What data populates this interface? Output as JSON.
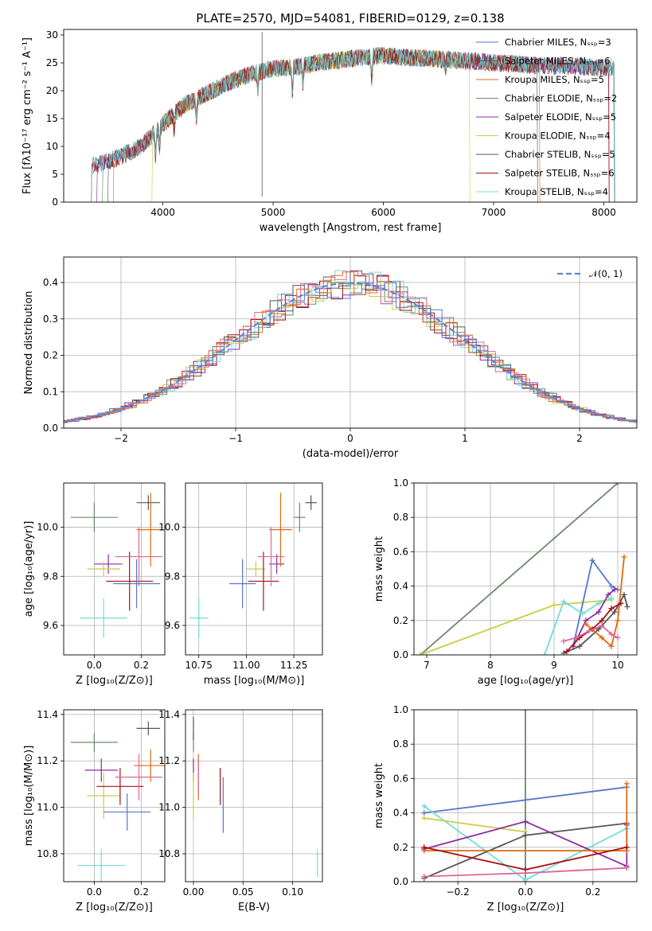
{
  "figure_title": "PLATE=2570, MJD=54081, FIBERID=0129, z=0.138",
  "colors": [
    "#6a8a6a",
    "#8e2ca0",
    "#cccc44",
    "#555555",
    "#aa1111",
    "#70dcdc",
    "#5577cc",
    "#e06a10",
    "#dd6699"
  ],
  "chart_data": [
    {
      "id": "spectrum",
      "type": "line",
      "title": "PLATE=2570, MJD=54081, FIBERID=0129, z=0.138",
      "xlabel": "wavelength [Angstrom, rest frame]",
      "ylabel": "Flux [fλ10⁻¹⁷ erg cm⁻² s⁻¹ A⁻¹]",
      "xlim": [
        3100,
        8300
      ],
      "ylim": [
        0,
        31
      ],
      "xticks": [
        "4000",
        "5000",
        "6000",
        "7000",
        "8000"
      ],
      "yticks": [
        "0",
        "5",
        "10",
        "15",
        "20",
        "25",
        "30"
      ],
      "grid": false,
      "legend": "upper-right",
      "continuum": {
        "x": [
          3350,
          3450,
          3600,
          3800,
          4000,
          4200,
          4400,
          4600,
          4800,
          5000,
          5200,
          5400,
          5600,
          5800,
          6000,
          6200,
          6400,
          6600,
          6800,
          7000,
          7200,
          7400,
          7600,
          7800,
          8000,
          8100
        ],
        "y": [
          6.5,
          7.0,
          8.0,
          10.0,
          14.0,
          17.5,
          19.5,
          21.5,
          23.0,
          24.0,
          24.2,
          25.0,
          25.5,
          26.0,
          26.3,
          26.0,
          25.8,
          25.5,
          25.3,
          25.0,
          24.8,
          24.5,
          24.5,
          24.3,
          24.2,
          24.2
        ]
      },
      "series": [
        {
          "label": "Chabrier MILES, N_SSP=3",
          "color": "#5577cc"
        },
        {
          "label": "Salpeter MILES, N_SSP=6",
          "color": "#555555"
        },
        {
          "label": "Kroupa MILES, N_SSP=5",
          "color": "#e06a10"
        },
        {
          "label": "Chabrier ELODIE, N_SSP=2",
          "color": "#6a8a6a"
        },
        {
          "label": "Salpeter ELODIE, N_SSP=5",
          "color": "#8e2ca0"
        },
        {
          "label": "Kroupa ELODIE, N_SSP=4",
          "color": "#cccc44"
        },
        {
          "label": "Chabrier STELIB, N_SSP=5",
          "color": "#555555"
        },
        {
          "label": "Salpeter STELIB, N_SSP=6",
          "color": "#aa1111"
        },
        {
          "label": "Kroupa STELIB, N_SSP=4",
          "color": "#70dcdc"
        }
      ]
    },
    {
      "id": "residuals",
      "type": "line",
      "xlabel": "(data-model)/error",
      "ylabel": "Normed distribution",
      "xlim": [
        -2.5,
        2.5
      ],
      "ylim": [
        0,
        0.47
      ],
      "xticks": [
        "−2",
        "−1",
        "0",
        "1",
        "2"
      ],
      "yticks": [
        "0.0",
        "0.1",
        "0.2",
        "0.3",
        "0.4"
      ],
      "grid": true,
      "legend": "upper-right",
      "legend_label": "𝒩(0, 1)",
      "gaussian": {
        "mean": 0,
        "sigma": 1,
        "color": "#5b86d8"
      }
    },
    {
      "id": "age-vs-Z",
      "type": "scatter",
      "xlabel": "Z [log₁₀(Z/Z⊙)]",
      "ylabel": "age  [log₁₀(age/yr)]",
      "xlim": [
        -0.13,
        0.3
      ],
      "ylim": [
        9.48,
        10.18
      ],
      "xticks": [
        "0.0",
        "0.2"
      ],
      "yticks": [
        "9.6",
        "9.8",
        "10.0"
      ],
      "grid": true,
      "points": [
        {
          "x": 0.0,
          "y": 10.04,
          "xerr": 0.1,
          "yerr": 0.06,
          "color": "#6a8a6a"
        },
        {
          "x": 0.23,
          "y": 10.1,
          "xerr": 0.05,
          "yerr": 0.03,
          "color": "#555555"
        },
        {
          "x": 0.06,
          "y": 9.85,
          "xerr": 0.06,
          "yerr": 0.04,
          "color": "#8e2ca0"
        },
        {
          "x": 0.04,
          "y": 9.83,
          "xerr": 0.07,
          "yerr": 0.03,
          "color": "#cccc44"
        },
        {
          "x": 0.15,
          "y": 9.78,
          "xerr": 0.1,
          "yerr": 0.12,
          "color": "#aa1111"
        },
        {
          "x": 0.24,
          "y": 9.99,
          "xerr": 0.06,
          "yerr": 0.15,
          "color": "#e06a10"
        },
        {
          "x": 0.19,
          "y": 9.88,
          "xerr": 0.1,
          "yerr": 0.12,
          "color": "#dd6699"
        },
        {
          "x": 0.18,
          "y": 9.77,
          "xerr": 0.1,
          "yerr": 0.1,
          "color": "#5577cc"
        },
        {
          "x": 0.04,
          "y": 9.63,
          "xerr": 0.1,
          "yerr": 0.08,
          "color": "#70dcdc"
        }
      ]
    },
    {
      "id": "age-vs-mass",
      "type": "scatter",
      "xlabel": "mass [log₁₀(M/M⊙)]",
      "xlim": [
        10.68,
        11.4
      ],
      "ylim": [
        9.48,
        10.18
      ],
      "xticks": [
        "10.75",
        "11.00",
        "11.25"
      ],
      "yticks": [
        "9.6",
        "9.8",
        "10.0"
      ],
      "grid": true,
      "points": [
        {
          "x": 11.28,
          "y": 10.04,
          "xerr": 0.03,
          "yerr": 0.06,
          "color": "#6a8a6a"
        },
        {
          "x": 11.34,
          "y": 10.1,
          "xerr": 0.03,
          "yerr": 0.03,
          "color": "#555555"
        },
        {
          "x": 11.16,
          "y": 9.85,
          "xerr": 0.04,
          "yerr": 0.04,
          "color": "#8e2ca0"
        },
        {
          "x": 11.05,
          "y": 9.83,
          "xerr": 0.05,
          "yerr": 0.03,
          "color": "#cccc44"
        },
        {
          "x": 11.09,
          "y": 9.78,
          "xerr": 0.08,
          "yerr": 0.12,
          "color": "#aa1111"
        },
        {
          "x": 11.18,
          "y": 9.99,
          "xerr": 0.06,
          "yerr": 0.15,
          "color": "#e06a10"
        },
        {
          "x": 11.13,
          "y": 9.88,
          "xerr": 0.07,
          "yerr": 0.12,
          "color": "#dd6699"
        },
        {
          "x": 10.98,
          "y": 9.77,
          "xerr": 0.07,
          "yerr": 0.1,
          "color": "#5577cc"
        },
        {
          "x": 10.75,
          "y": 9.63,
          "xerr": 0.05,
          "yerr": 0.08,
          "color": "#70dcdc"
        }
      ]
    },
    {
      "id": "weight-vs-age",
      "type": "line",
      "xlabel": "age  [log₁₀(age/yr)]",
      "ylabel": "mass weight",
      "xlim": [
        6.8,
        10.3
      ],
      "ylim": [
        0,
        1
      ],
      "xticks": [
        "7",
        "8",
        "9",
        "10"
      ],
      "yticks": [
        "0.0",
        "0.2",
        "0.4",
        "0.6",
        "0.8",
        "1.0"
      ],
      "grid": true,
      "series": [
        {
          "color": "#6a8a6a",
          "x": [
            6.9,
            10.0
          ],
          "y": [
            0.0,
            1.0
          ]
        },
        {
          "color": "#cccc44",
          "x": [
            6.9,
            9.0,
            9.9
          ],
          "y": [
            0.0,
            0.29,
            0.32
          ]
        },
        {
          "color": "#5577cc",
          "x": [
            9.3,
            9.6,
            9.9,
            10.0
          ],
          "y": [
            0.05,
            0.55,
            0.4,
            0.38
          ]
        },
        {
          "color": "#70dcdc",
          "x": [
            8.85,
            9.15,
            9.45,
            9.7,
            9.9
          ],
          "y": [
            0.0,
            0.31,
            0.24,
            0.3,
            0.33
          ]
        },
        {
          "color": "#8e2ca0",
          "x": [
            9.3,
            9.5,
            9.7,
            9.85,
            9.95
          ],
          "y": [
            0.05,
            0.2,
            0.25,
            0.35,
            0.38
          ]
        },
        {
          "color": "#555555",
          "x": [
            9.15,
            9.4,
            9.7,
            9.95,
            10.1,
            10.15
          ],
          "y": [
            0.01,
            0.05,
            0.15,
            0.25,
            0.35,
            0.28
          ]
        },
        {
          "color": "#e06a10",
          "x": [
            9.5,
            9.75,
            9.9,
            10.0,
            10.1
          ],
          "y": [
            0.18,
            0.1,
            0.05,
            0.2,
            0.57
          ]
        },
        {
          "color": "#aa1111",
          "x": [
            9.2,
            9.4,
            9.6,
            9.75,
            9.9,
            10.05
          ],
          "y": [
            0.02,
            0.1,
            0.15,
            0.2,
            0.27,
            0.3
          ]
        },
        {
          "color": "#dd6699",
          "x": [
            9.15,
            9.35,
            9.55,
            9.75,
            9.9,
            10.0
          ],
          "y": [
            0.08,
            0.1,
            0.14,
            0.17,
            0.12,
            0.1
          ]
        }
      ]
    },
    {
      "id": "mass-vs-Z",
      "type": "scatter",
      "xlabel": "Z [log₁₀(Z/Z⊙)]",
      "ylabel": "mass [log₁₀(M/M⊙)]",
      "xlim": [
        -0.13,
        0.3
      ],
      "ylim": [
        10.68,
        11.42
      ],
      "xticks": [
        "0.0",
        "0.2"
      ],
      "yticks": [
        "10.8",
        "11.0",
        "11.2",
        "11.4"
      ],
      "grid": true,
      "points": [
        {
          "x": 0.0,
          "y": 11.28,
          "xerr": 0.1,
          "yerr": 0.04,
          "color": "#6a8a6a"
        },
        {
          "x": 0.23,
          "y": 11.34,
          "xerr": 0.05,
          "yerr": 0.03,
          "color": "#555555"
        },
        {
          "x": 0.03,
          "y": 11.16,
          "xerr": 0.07,
          "yerr": 0.05,
          "color": "#8e2ca0"
        },
        {
          "x": 0.04,
          "y": 11.05,
          "xerr": 0.07,
          "yerr": 0.1,
          "color": "#cccc44"
        },
        {
          "x": 0.11,
          "y": 11.09,
          "xerr": 0.1,
          "yerr": 0.08,
          "color": "#aa1111"
        },
        {
          "x": 0.24,
          "y": 11.18,
          "xerr": 0.07,
          "yerr": 0.07,
          "color": "#e06a10"
        },
        {
          "x": 0.19,
          "y": 11.13,
          "xerr": 0.1,
          "yerr": 0.1,
          "color": "#dd6699"
        },
        {
          "x": 0.14,
          "y": 10.98,
          "xerr": 0.1,
          "yerr": 0.08,
          "color": "#5577cc"
        },
        {
          "x": 0.03,
          "y": 10.75,
          "xerr": 0.1,
          "yerr": 0.07,
          "color": "#70dcdc"
        }
      ]
    },
    {
      "id": "mass-vs-ebv",
      "type": "scatter",
      "xlabel": "E(B-V)",
      "xlim": [
        -0.008,
        0.13
      ],
      "ylim": [
        10.68,
        11.42
      ],
      "xticks": [
        "0.00",
        "0.05",
        "0.10"
      ],
      "yticks": [
        "10.8",
        "11.0",
        "11.2",
        "11.4"
      ],
      "grid": true,
      "points": [
        {
          "x": 0.0,
          "y": 11.28,
          "yerr": 0.04,
          "color": "#6a8a6a"
        },
        {
          "x": 0.0,
          "y": 11.34,
          "yerr": 0.05,
          "color": "#555555"
        },
        {
          "x": 0.0,
          "y": 11.16,
          "yerr": 0.05,
          "color": "#8e2ca0"
        },
        {
          "x": 0.0,
          "y": 11.05,
          "yerr": 0.1,
          "color": "#cccc44"
        },
        {
          "x": 0.027,
          "y": 11.09,
          "yerr": 0.08,
          "color": "#aa1111"
        },
        {
          "x": 0.005,
          "y": 11.13,
          "yerr": 0.1,
          "color": "#e06a10"
        },
        {
          "x": 0.005,
          "y": 11.13,
          "yerr": 0.08,
          "color": "#dd6699"
        },
        {
          "x": 0.03,
          "y": 11.01,
          "yerr": 0.12,
          "color": "#5577cc"
        },
        {
          "x": 0.125,
          "y": 10.76,
          "yerr": 0.06,
          "color": "#70dcdc"
        }
      ]
    },
    {
      "id": "weight-vs-Z",
      "type": "line",
      "xlabel": "Z [log₁₀(Z/Z⊙)]",
      "ylabel": "mass weight",
      "xlim": [
        -0.33,
        0.33
      ],
      "ylim": [
        0,
        1
      ],
      "xticks": [
        "−0.2",
        "0.0",
        "0.2"
      ],
      "yticks": [
        "0.0",
        "0.2",
        "0.4",
        "0.6",
        "0.8",
        "1.0"
      ],
      "grid": true,
      "series": [
        {
          "color": "#6a8a6a",
          "x": [
            0.0,
            0.0
          ],
          "y": [
            0.0,
            1.0
          ]
        },
        {
          "color": "#5577cc",
          "x": [
            -0.3,
            0.3
          ],
          "y": [
            0.4,
            0.55
          ]
        },
        {
          "color": "#70dcdc",
          "x": [
            -0.3,
            0.0,
            0.3
          ],
          "y": [
            0.44,
            0.01,
            0.31
          ]
        },
        {
          "color": "#cccc44",
          "x": [
            -0.3,
            0.0
          ],
          "y": [
            0.37,
            0.29
          ]
        },
        {
          "color": "#8e2ca0",
          "x": [
            -0.3,
            0.0,
            0.3,
            0.3
          ],
          "y": [
            0.19,
            0.35,
            0.09,
            0.33
          ]
        },
        {
          "color": "#555555",
          "x": [
            -0.3,
            0.0,
            0.3
          ],
          "y": [
            0.02,
            0.27,
            0.34
          ]
        },
        {
          "color": "#e06a10",
          "x": [
            -0.3,
            0.3,
            0.3
          ],
          "y": [
            0.18,
            0.18,
            0.57
          ]
        },
        {
          "color": "#aa1111",
          "x": [
            -0.3,
            0.0,
            0.3
          ],
          "y": [
            0.2,
            0.07,
            0.2
          ]
        },
        {
          "color": "#dd6699",
          "x": [
            -0.3,
            0.0,
            0.3
          ],
          "y": [
            0.03,
            0.05,
            0.08
          ]
        }
      ]
    }
  ]
}
